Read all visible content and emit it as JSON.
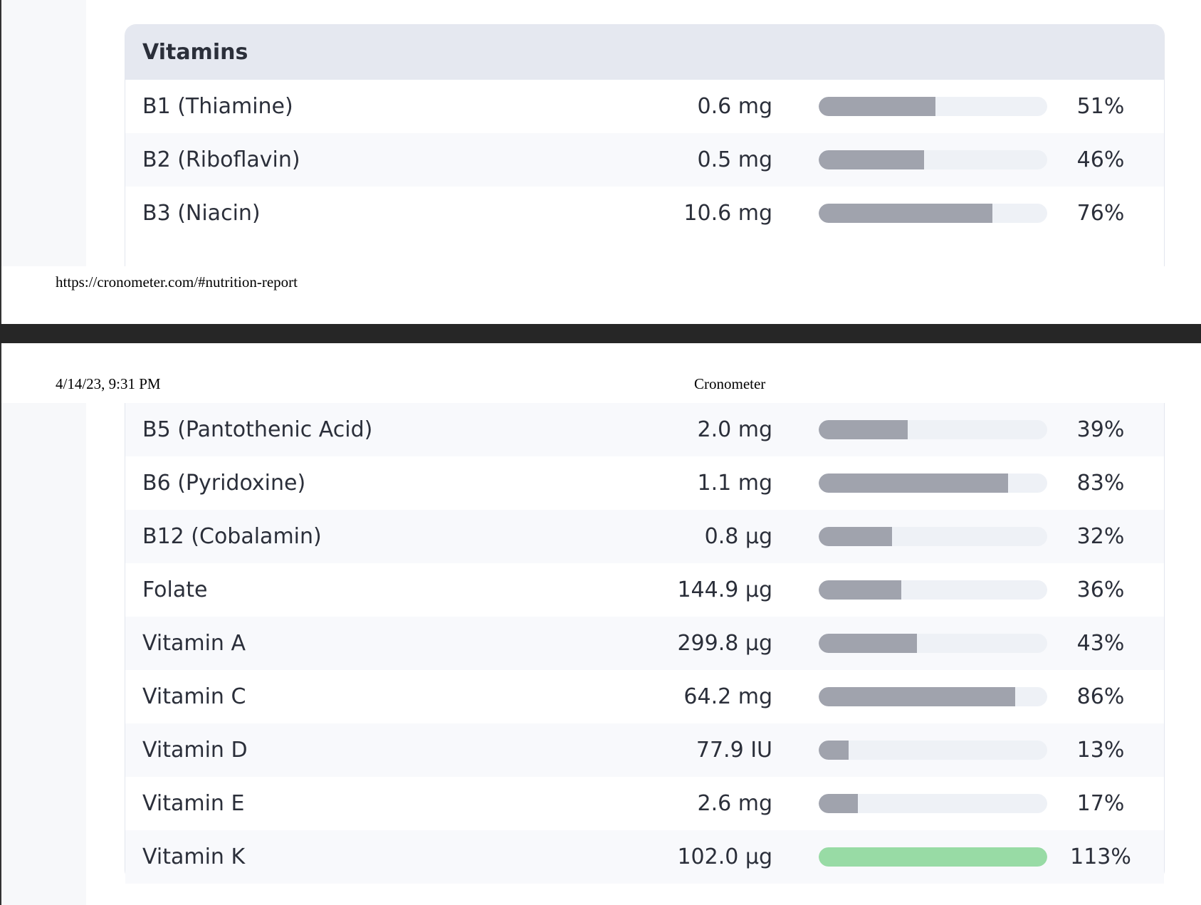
{
  "section": {
    "title": "Vitamins"
  },
  "print": {
    "url": "https://cronometer.com/#nutrition-report",
    "date": "4/14/23, 9:31 PM",
    "app_title": "Cronometer"
  },
  "colors": {
    "bar_default": "#a0a3ad",
    "bar_full": "#98dba5",
    "track": "#eef1f6"
  },
  "rows_top": [
    {
      "name": "B1 (Thiamine)",
      "amount": "0.6 mg",
      "percent": "51%",
      "fill": 0.51
    },
    {
      "name": "B2 (Riboflavin)",
      "amount": "0.5 mg",
      "percent": "46%",
      "fill": 0.46
    },
    {
      "name": "B3 (Niacin)",
      "amount": "10.6 mg",
      "percent": "76%",
      "fill": 0.76
    }
  ],
  "rows_bottom": [
    {
      "name": "B5 (Pantothenic Acid)",
      "amount": "2.0 mg",
      "percent": "39%",
      "fill": 0.39
    },
    {
      "name": "B6 (Pyridoxine)",
      "amount": "1.1 mg",
      "percent": "83%",
      "fill": 0.83
    },
    {
      "name": "B12 (Cobalamin)",
      "amount": "0.8 µg",
      "percent": "32%",
      "fill": 0.32
    },
    {
      "name": "Folate",
      "amount": "144.9 µg",
      "percent": "36%",
      "fill": 0.36
    },
    {
      "name": "Vitamin A",
      "amount": "299.8 µg",
      "percent": "43%",
      "fill": 0.43
    },
    {
      "name": "Vitamin C",
      "amount": "64.2 mg",
      "percent": "86%",
      "fill": 0.86
    },
    {
      "name": "Vitamin D",
      "amount": "77.9 IU",
      "percent": "13%",
      "fill": 0.13
    },
    {
      "name": "Vitamin E",
      "amount": "2.6 mg",
      "percent": "17%",
      "fill": 0.17
    },
    {
      "name": "Vitamin K",
      "amount": "102.0 µg",
      "percent": "113%",
      "fill": 1.13
    }
  ]
}
